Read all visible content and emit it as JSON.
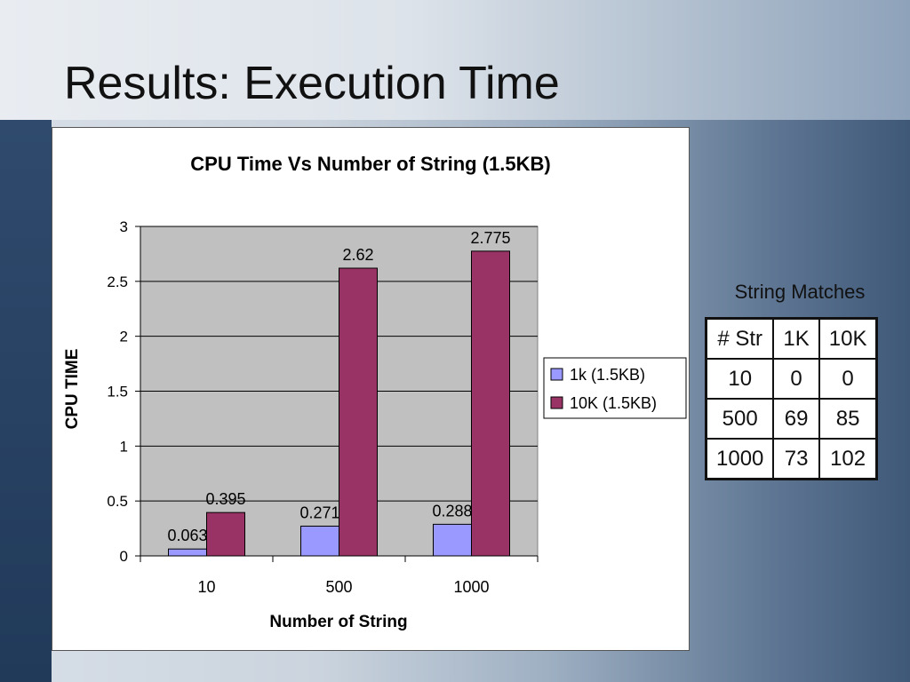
{
  "slide": {
    "title": "Results: Execution Time"
  },
  "chart_data": {
    "type": "bar",
    "title": "CPU Time Vs Number of String (1.5KB)",
    "xlabel": "Number of String",
    "ylabel": "CPU TIME",
    "categories": [
      "10",
      "500",
      "1000"
    ],
    "series": [
      {
        "name": "1k (1.5KB)",
        "values": [
          0.063,
          0.271,
          0.288
        ],
        "labels": [
          "0.063",
          "0.271",
          "0.288"
        ],
        "color": "#9999ff"
      },
      {
        "name": "10K (1.5KB)",
        "values": [
          0.395,
          2.62,
          2.775
        ],
        "labels": [
          "0.395",
          "2.62",
          "2.775"
        ],
        "color": "#993366"
      }
    ],
    "ylim": [
      0,
      3
    ],
    "yticks": [
      "0",
      "0.5",
      "1",
      "1.5",
      "2",
      "2.5",
      "3"
    ],
    "grid": true,
    "plot_background": "#c0c0c0",
    "legend_position": "right"
  },
  "table": {
    "caption": "String Matches",
    "rows": [
      [
        "# Str",
        "1K",
        "10K"
      ],
      [
        "10",
        "0",
        "0"
      ],
      [
        "500",
        "69",
        "85"
      ],
      [
        "1000",
        "73",
        "102"
      ]
    ]
  }
}
